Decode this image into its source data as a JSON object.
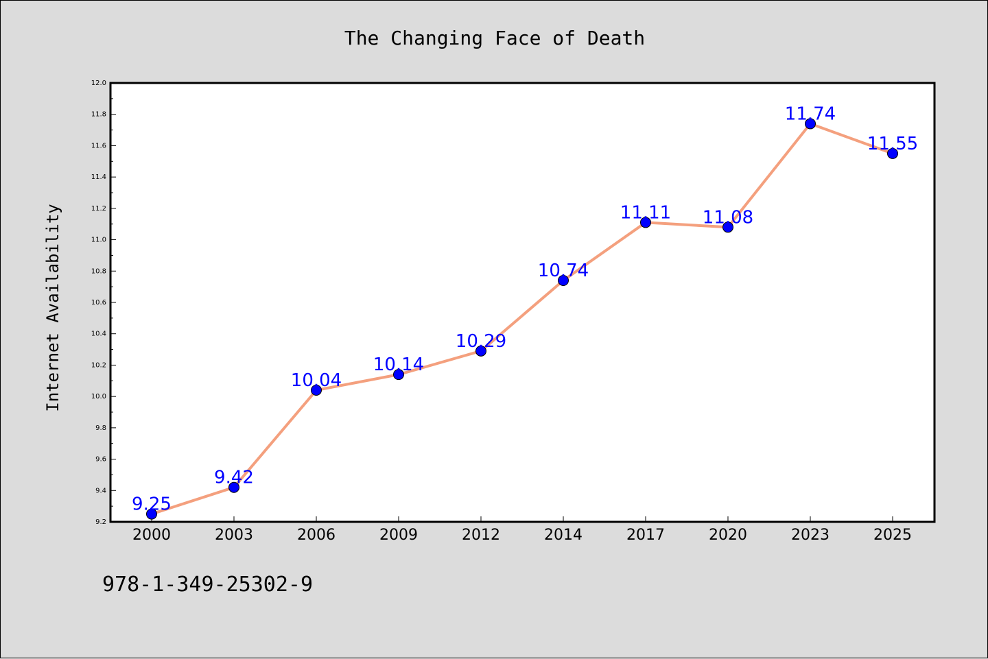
{
  "chart_data": {
    "type": "line",
    "title": "The Changing Face of Death",
    "ylabel": "Internet Availability",
    "xlabel": "",
    "categories": [
      "2000",
      "2003",
      "2006",
      "2009",
      "2012",
      "2014",
      "2017",
      "2020",
      "2023",
      "2025"
    ],
    "series": [
      {
        "values": [
          9.25,
          9.42,
          10.04,
          10.14,
          10.29,
          10.74,
          11.11,
          11.08,
          11.74,
          11.55
        ],
        "line_color": "#f4a07e",
        "marker_color": "#0000ff"
      }
    ],
    "data_labels": [
      "9.25",
      "9.42",
      "10.04",
      "10.14",
      "10.29",
      "10.74",
      "11.11",
      "11.08",
      "11.74",
      "11.55"
    ],
    "ylim": [
      9.2,
      12.0
    ],
    "yticks": [
      "9.2",
      "9.4",
      "9.6",
      "9.8",
      "10.0",
      "10.2",
      "10.4",
      "10.6",
      "10.8",
      "11.0",
      "11.2",
      "11.4",
      "11.6",
      "11.8",
      "12.0"
    ],
    "grid": false,
    "legend": "none"
  },
  "footer": {
    "code": "978-1-349-25302-9"
  },
  "colors": {
    "background": "#dcdcdc",
    "plot_background": "#ffffff",
    "line": "#f4a07e",
    "marker": "#0000ff",
    "data_label": "#0000ff"
  }
}
